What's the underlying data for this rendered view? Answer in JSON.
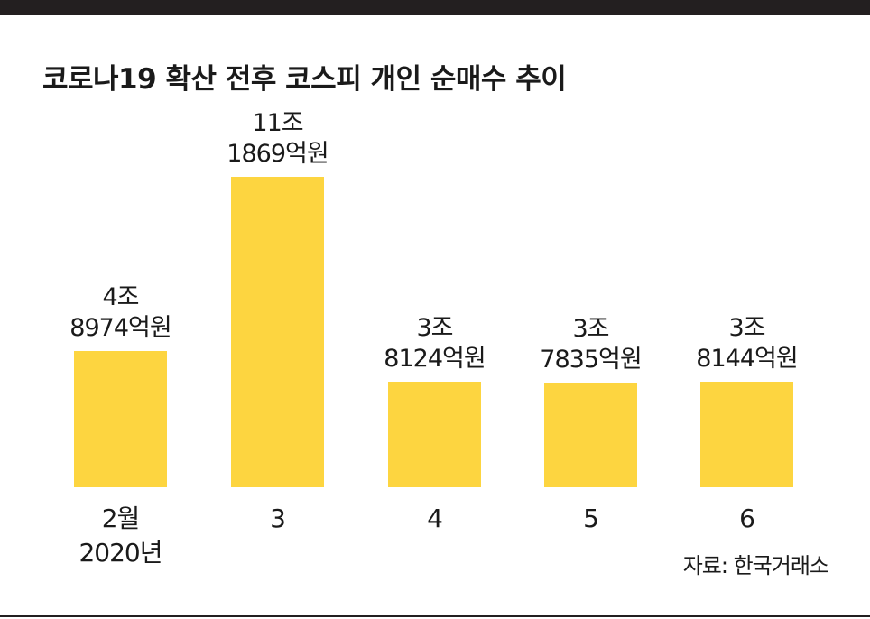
{
  "chart_data": {
    "type": "bar",
    "title": "코로나19 확산 전후 코스피 개인 순매수 추이",
    "categories": [
      {
        "line1": "2월",
        "line2": "2020년"
      },
      {
        "line1": "3",
        "line2": ""
      },
      {
        "line1": "4",
        "line2": ""
      },
      {
        "line1": "5",
        "line2": ""
      },
      {
        "line1": "6",
        "line2": ""
      }
    ],
    "values": [
      48974,
      111869,
      38124,
      37835,
      38144
    ],
    "value_unit": "억원",
    "labels": [
      {
        "line1": "4조",
        "line2": "8974억원"
      },
      {
        "line1": "11조",
        "line2": "1869억원"
      },
      {
        "line1": "3조",
        "line2": "8124억원"
      },
      {
        "line1": "3조",
        "line2": "7835억원"
      },
      {
        "line1": "3조",
        "line2": "8144억원"
      }
    ],
    "source": "자료: 한국거래소",
    "colors": {
      "bar": "#fdd540",
      "rule": "#231f20",
      "text": "#1a1a1a"
    }
  }
}
